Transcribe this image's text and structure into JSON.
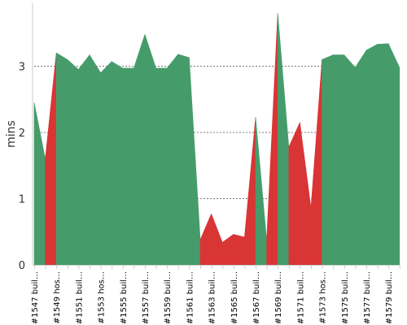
{
  "chart_data": {
    "type": "area",
    "title": "",
    "xlabel": "",
    "ylabel": "mins",
    "ylim": [
      0,
      3.95
    ],
    "yticks": [
      0,
      1,
      2,
      3
    ],
    "grid": true,
    "colors": {
      "success": "#459c6a",
      "failure": "#d93535"
    },
    "x_tick_labels": [
      "#1547 buil…",
      "#1549 hos…",
      "#1551 buil…",
      "#1553 hos…",
      "#1555 buil…",
      "#1557 buil…",
      "#1559 buil…",
      "#1561 buil…",
      "#1563 buil…",
      "#1565 buil…",
      "#1567 buil…",
      "#1569 buil…",
      "#1571 buil…",
      "#1573 hos…",
      "#1575 buil…",
      "#1577 buil…",
      "#1579 buil…"
    ],
    "builds": [
      {
        "n": 1547,
        "mins": 2.45,
        "status": "success"
      },
      {
        "n": 1548,
        "mins": 1.6,
        "status": "failure"
      },
      {
        "n": 1549,
        "mins": 3.2,
        "status": "success"
      },
      {
        "n": 1550,
        "mins": 3.1,
        "status": "success"
      },
      {
        "n": 1551,
        "mins": 2.95,
        "status": "success"
      },
      {
        "n": 1552,
        "mins": 3.17,
        "status": "success"
      },
      {
        "n": 1553,
        "mins": 2.9,
        "status": "success"
      },
      {
        "n": 1554,
        "mins": 3.07,
        "status": "success"
      },
      {
        "n": 1555,
        "mins": 2.97,
        "status": "success"
      },
      {
        "n": 1556,
        "mins": 2.97,
        "status": "success"
      },
      {
        "n": 1557,
        "mins": 3.48,
        "status": "success"
      },
      {
        "n": 1558,
        "mins": 2.97,
        "status": "success"
      },
      {
        "n": 1559,
        "mins": 2.97,
        "status": "success"
      },
      {
        "n": 1560,
        "mins": 3.18,
        "status": "success"
      },
      {
        "n": 1561,
        "mins": 3.13,
        "status": "success"
      },
      {
        "n": 1562,
        "mins": 0.38,
        "status": "failure"
      },
      {
        "n": 1563,
        "mins": 0.77,
        "status": "failure"
      },
      {
        "n": 1564,
        "mins": 0.34,
        "status": "failure"
      },
      {
        "n": 1565,
        "mins": 0.46,
        "status": "failure"
      },
      {
        "n": 1566,
        "mins": 0.42,
        "status": "failure"
      },
      {
        "n": 1567,
        "mins": 2.23,
        "status": "success"
      },
      {
        "n": 1568,
        "mins": 0.37,
        "status": "failure"
      },
      {
        "n": 1569,
        "mins": 3.8,
        "status": "success"
      },
      {
        "n": 1570,
        "mins": 1.78,
        "status": "failure"
      },
      {
        "n": 1571,
        "mins": 2.15,
        "status": "failure"
      },
      {
        "n": 1572,
        "mins": 0.86,
        "status": "failure"
      },
      {
        "n": 1573,
        "mins": 3.1,
        "status": "success"
      },
      {
        "n": 1574,
        "mins": 3.17,
        "status": "success"
      },
      {
        "n": 1575,
        "mins": 3.17,
        "status": "success"
      },
      {
        "n": 1576,
        "mins": 2.98,
        "status": "success"
      },
      {
        "n": 1577,
        "mins": 3.24,
        "status": "success"
      },
      {
        "n": 1578,
        "mins": 3.33,
        "status": "success"
      },
      {
        "n": 1579,
        "mins": 3.34,
        "status": "success"
      },
      {
        "n": 1580,
        "mins": 2.98,
        "status": "success"
      }
    ]
  }
}
